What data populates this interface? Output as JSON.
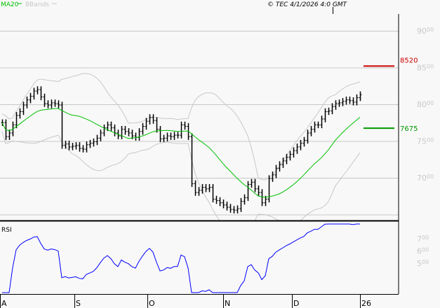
{
  "legend": {
    "ma_label": "MA20",
    "bbands_label": "BBands",
    "ma_color": "#00c000",
    "bbands_color": "#c8c8c8"
  },
  "copyright": "© TEC 4/1/2026 4:0 GMT",
  "chart_data": {
    "type": "bar",
    "price_axis": {
      "ticks": [
        "9000",
        "8500",
        "8000",
        "7500",
        "7000"
      ],
      "tick_values": [
        9000,
        8500,
        8000,
        7500,
        7000
      ],
      "range": [
        6450,
        9400
      ]
    },
    "x_labels": [
      "A",
      "S",
      "O",
      "N",
      "D",
      "26"
    ],
    "close": [
      7750,
      7560,
      7610,
      7720,
      7850,
      7900,
      7990,
      8060,
      8110,
      8180,
      8200,
      8100,
      8010,
      7990,
      8020,
      8010,
      7990,
      7440,
      7460,
      7420,
      7430,
      7440,
      7400,
      7390,
      7450,
      7470,
      7490,
      7540,
      7610,
      7680,
      7720,
      7680,
      7610,
      7570,
      7660,
      7630,
      7610,
      7570,
      7550,
      7630,
      7700,
      7770,
      7820,
      7780,
      7660,
      7530,
      7540,
      7570,
      7560,
      7580,
      7580,
      7720,
      7700,
      7560,
      6920,
      6800,
      6830,
      6870,
      6850,
      6870,
      6710,
      6690,
      6660,
      6630,
      6600,
      6570,
      6560,
      6580,
      6680,
      6730,
      6910,
      6940,
      6850,
      6800,
      6660,
      6710,
      6990,
      7040,
      7130,
      7180,
      7230,
      7280,
      7320,
      7370,
      7420,
      7470,
      7510,
      7610,
      7660,
      7720,
      7720,
      7800,
      7900,
      7910,
      7970,
      8010,
      8020,
      8040,
      8060,
      8050,
      8030,
      8090,
      8130
    ],
    "levels": [
      {
        "value": "8520",
        "price": 8520,
        "color": "#cc0000"
      },
      {
        "value": "7675",
        "price": 7675,
        "color": "#009900"
      }
    ],
    "indicators": {
      "ma_period": 20,
      "bbands_period": 20
    },
    "rsi": {
      "label": "RSI",
      "ticks": [
        "70",
        "60",
        "50"
      ],
      "tick_values": [
        70,
        60,
        50
      ],
      "color": "#0000ff"
    }
  }
}
